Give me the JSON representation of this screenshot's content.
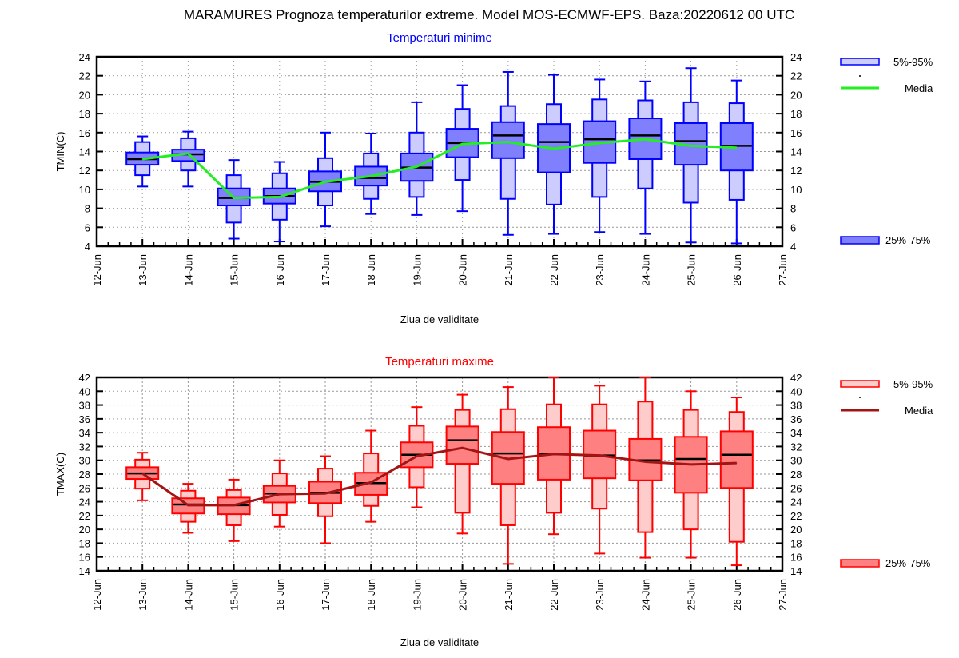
{
  "title": "MARAMURES  Prognoza temperaturilor extreme.  Model MOS-ECMWF-EPS. Baza:20220612 00 UTC",
  "colors": {
    "min_inner": "#8080ff",
    "min_outer": "#ccccff",
    "min_stroke": "#0000ff",
    "min_mean": "#22ee22",
    "max_inner": "#ff8080",
    "max_outer": "#ffcccc",
    "max_stroke": "#ff0000",
    "max_mean": "#a31515"
  },
  "chart_data": [
    {
      "type": "box",
      "title": "Temperaturi minime",
      "ylabel": "TMIN(C)",
      "xlabel": "Ziua de validitate",
      "ylim": [
        4,
        24
      ],
      "yticks": [
        4,
        6,
        8,
        10,
        12,
        14,
        16,
        18,
        20,
        22,
        24
      ],
      "xticks": [
        "12-Jun",
        "13-Jun",
        "14-Jun",
        "15-Jun",
        "16-Jun",
        "17-Jun",
        "18-Jun",
        "19-Jun",
        "20-Jun",
        "21-Jun",
        "22-Jun",
        "23-Jun",
        "24-Jun",
        "25-Jun",
        "26-Jun",
        "27-Jun"
      ],
      "grid": true,
      "legend": {
        "outer": "5%-95%",
        "mean": "Media",
        "inner": "25%-75%",
        "placement": "right"
      },
      "categories": [
        "13-Jun",
        "14-Jun",
        "15-Jun",
        "16-Jun",
        "17-Jun",
        "18-Jun",
        "19-Jun",
        "20-Jun",
        "21-Jun",
        "22-Jun",
        "23-Jun",
        "24-Jun",
        "25-Jun",
        "26-Jun"
      ],
      "min": [
        10.3,
        10.3,
        4.8,
        4.5,
        6.1,
        7.4,
        7.3,
        7.7,
        5.2,
        5.3,
        5.5,
        5.3,
        4.4,
        4.3
      ],
      "p5": [
        11.5,
        12.0,
        6.5,
        6.8,
        8.3,
        9.0,
        9.2,
        11.0,
        9.0,
        8.4,
        9.2,
        10.1,
        8.6,
        8.9
      ],
      "p25": [
        12.6,
        13.0,
        8.3,
        8.5,
        9.8,
        10.4,
        10.9,
        13.4,
        13.3,
        11.8,
        12.8,
        13.2,
        12.6,
        12.0
      ],
      "median": [
        13.2,
        13.7,
        9.1,
        9.3,
        10.8,
        11.2,
        12.3,
        14.9,
        15.7,
        15.0,
        15.3,
        15.7,
        15.1,
        14.6
      ],
      "p75": [
        13.9,
        14.2,
        10.1,
        10.1,
        11.9,
        12.4,
        13.8,
        16.4,
        17.1,
        16.9,
        17.2,
        17.5,
        17.0,
        17.0
      ],
      "p95": [
        15.0,
        15.4,
        11.5,
        11.7,
        13.3,
        13.8,
        16.0,
        18.5,
        18.8,
        19.0,
        19.5,
        19.4,
        19.2,
        19.1
      ],
      "max": [
        15.6,
        16.1,
        13.1,
        12.9,
        16.0,
        15.9,
        19.2,
        21.0,
        22.4,
        22.1,
        21.6,
        21.4,
        22.8,
        21.5
      ],
      "mean": [
        13.2,
        13.8,
        9.1,
        9.2,
        10.8,
        11.4,
        12.4,
        14.8,
        15.0,
        14.3,
        14.9,
        15.3,
        14.6,
        14.4
      ]
    },
    {
      "type": "box",
      "title": "Temperaturi maxime",
      "ylabel": "TMAX(C)",
      "xlabel": "Ziua de validitate",
      "ylim": [
        14,
        42
      ],
      "yticks": [
        14,
        16,
        18,
        20,
        22,
        24,
        26,
        28,
        30,
        32,
        34,
        36,
        38,
        40,
        42
      ],
      "xticks": [
        "12-Jun",
        "13-Jun",
        "14-Jun",
        "15-Jun",
        "16-Jun",
        "17-Jun",
        "18-Jun",
        "19-Jun",
        "20-Jun",
        "21-Jun",
        "22-Jun",
        "23-Jun",
        "24-Jun",
        "25-Jun",
        "26-Jun",
        "27-Jun"
      ],
      "grid": true,
      "legend": {
        "outer": "5%-95%",
        "mean": "Media",
        "inner": "25%-75%",
        "placement": "right"
      },
      "categories": [
        "13-Jun",
        "14-Jun",
        "15-Jun",
        "16-Jun",
        "17-Jun",
        "18-Jun",
        "19-Jun",
        "20-Jun",
        "21-Jun",
        "22-Jun",
        "23-Jun",
        "24-Jun",
        "25-Jun",
        "26-Jun"
      ],
      "min": [
        24.2,
        19.5,
        18.3,
        20.4,
        18.0,
        21.1,
        23.2,
        19.4,
        15.0,
        19.3,
        16.5,
        15.9,
        15.9,
        14.8
      ],
      "p5": [
        25.9,
        21.1,
        20.6,
        22.1,
        21.9,
        23.4,
        26.1,
        22.4,
        20.6,
        22.4,
        23.0,
        19.6,
        20.0,
        18.2
      ],
      "p25": [
        27.3,
        22.3,
        22.2,
        23.9,
        23.8,
        25.0,
        29.0,
        29.5,
        26.6,
        27.2,
        27.4,
        27.1,
        25.3,
        26.0
      ],
      "median": [
        28.1,
        23.6,
        23.5,
        25.2,
        25.3,
        26.7,
        30.8,
        32.9,
        31.0,
        30.9,
        30.7,
        30.0,
        30.2,
        30.8
      ],
      "p75": [
        29.0,
        24.5,
        24.6,
        26.3,
        26.9,
        28.2,
        32.6,
        34.9,
        34.1,
        34.8,
        34.3,
        33.1,
        33.4,
        34.2
      ],
      "p95": [
        30.1,
        25.6,
        25.7,
        28.1,
        28.8,
        31.0,
        35.0,
        37.3,
        37.4,
        38.1,
        38.1,
        38.5,
        37.3,
        37.0
      ],
      "max": [
        31.1,
        26.6,
        27.2,
        30.0,
        30.6,
        34.3,
        37.7,
        39.5,
        40.6,
        42.0,
        40.8,
        42.0,
        40.0,
        39.1
      ],
      "mean": [
        28.1,
        23.5,
        23.5,
        25.1,
        25.2,
        26.8,
        30.6,
        31.8,
        30.2,
        30.9,
        30.7,
        29.8,
        29.4,
        29.6
      ]
    }
  ]
}
